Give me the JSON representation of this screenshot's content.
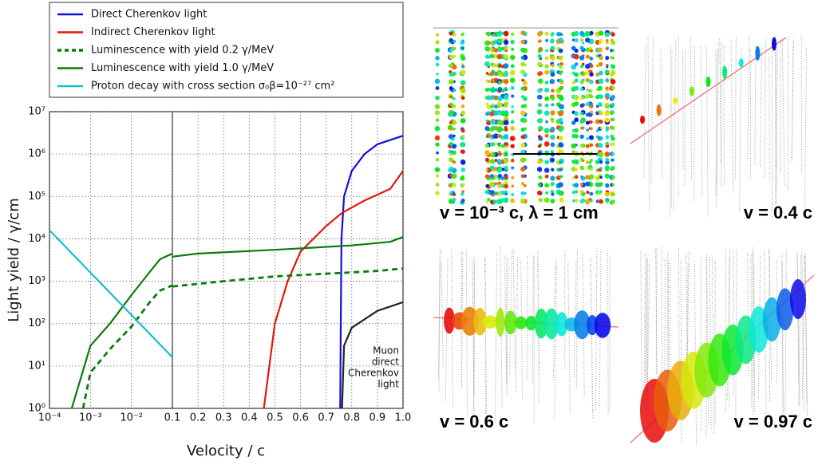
{
  "chart_data": [
    {
      "type": "line",
      "xscale": "log",
      "yscale": "log",
      "ylabel": "Light yield / γ/cm",
      "xlabel": "Velocity / c",
      "xlim": [
        0.0001,
        0.1
      ],
      "ylim": [
        1,
        10000000
      ],
      "xticks": [
        {
          "value": 0.0001,
          "label": "10⁻⁴"
        },
        {
          "value": 0.001,
          "label": "10⁻³"
        },
        {
          "value": 0.01,
          "label": "10⁻²"
        }
      ],
      "yticks": [
        {
          "value": 1,
          "label": "10⁰"
        },
        {
          "value": 10,
          "label": "10¹"
        },
        {
          "value": 100,
          "label": "10²"
        },
        {
          "value": 1000,
          "label": "10³"
        },
        {
          "value": 10000,
          "label": "10⁴"
        },
        {
          "value": 100000,
          "label": "10⁵"
        },
        {
          "value": 1000000,
          "label": "10⁶"
        },
        {
          "value": 10000000,
          "label": "10⁷"
        }
      ],
      "grid": true,
      "legend": "top",
      "series": [
        {
          "name": "Luminescence with yield 0.2 γ/MeV",
          "color": "#0a7a0a",
          "dash": true,
          "x": [
            0.00066,
            0.001,
            0.003,
            0.01,
            0.03,
            0.05,
            0.1
          ],
          "values": [
            1,
            7,
            25,
            85,
            350,
            600,
            800
          ]
        },
        {
          "name": "Luminescence with yield 1.0 γ/MeV",
          "color": "#0a7a0a",
          "dash": false,
          "x": [
            0.00035,
            0.001,
            0.003,
            0.01,
            0.03,
            0.05,
            0.1
          ],
          "values": [
            1,
            30,
            100,
            470,
            1800,
            3300,
            4500
          ]
        },
        {
          "name": "Proton decay with cross section σ₀β=10⁻²⁷ cm²",
          "color": "#17bfc4",
          "dash": false,
          "x": [
            0.0001,
            0.1
          ],
          "values": [
            16000,
            16
          ]
        }
      ]
    },
    {
      "type": "line",
      "xscale": "linear",
      "yscale": "log",
      "xlim": [
        0.1,
        1
      ],
      "ylim": [
        1,
        10000000
      ],
      "xticks": [
        0.1,
        0.2,
        0.3,
        0.4,
        0.5,
        0.6,
        0.7,
        0.8,
        0.9,
        {
          "value": 1,
          "label": "1.0"
        }
      ],
      "grid": true,
      "annotation": [
        "Muon",
        "direct",
        "Cherenkov",
        "light"
      ],
      "series": [
        {
          "name": "Direct Cherenkov light",
          "color": "#1010d8",
          "dash": false,
          "x": [
            0.755,
            0.757,
            0.76,
            0.77,
            0.8,
            0.85,
            0.9,
            1.0
          ],
          "values": [
            1,
            100,
            10000,
            100000,
            400000,
            1000000,
            1700000,
            2700000
          ]
        },
        {
          "name": "Indirect Cherenkov light",
          "color": "#e8150c",
          "dash": false,
          "x": [
            0.457,
            0.5,
            0.55,
            0.6,
            0.7,
            0.76,
            0.85,
            0.95,
            1.0
          ],
          "values": [
            1,
            100,
            1000,
            5000,
            20000,
            40000,
            80000,
            150000,
            400000
          ]
        },
        {
          "color": "#222222",
          "dash": false,
          "x": [
            0.762,
            0.77,
            0.8,
            0.9,
            1.0
          ],
          "values": [
            1,
            30,
            80,
            200,
            320
          ]
        },
        {
          "color": "#0a7a0a",
          "dash": true,
          "x": [
            0.1,
            0.3,
            0.5,
            0.7,
            0.9,
            1.0
          ],
          "values": [
            750,
            1000,
            1300,
            1500,
            1750,
            2000
          ]
        },
        {
          "color": "#0a7a0a",
          "dash": false,
          "x": [
            0.1,
            0.2,
            0.5,
            0.8,
            0.95,
            1.0
          ],
          "values": [
            3800,
            4500,
            5500,
            7000,
            8500,
            11000
          ]
        }
      ]
    }
  ],
  "panels": [
    {
      "label": "v = 10⁻³ c, λ = 1 cm"
    },
    {
      "label": "v = 0.4 c"
    },
    {
      "label": "v = 0.6 c"
    },
    {
      "label": "v = 0.97 c"
    }
  ]
}
